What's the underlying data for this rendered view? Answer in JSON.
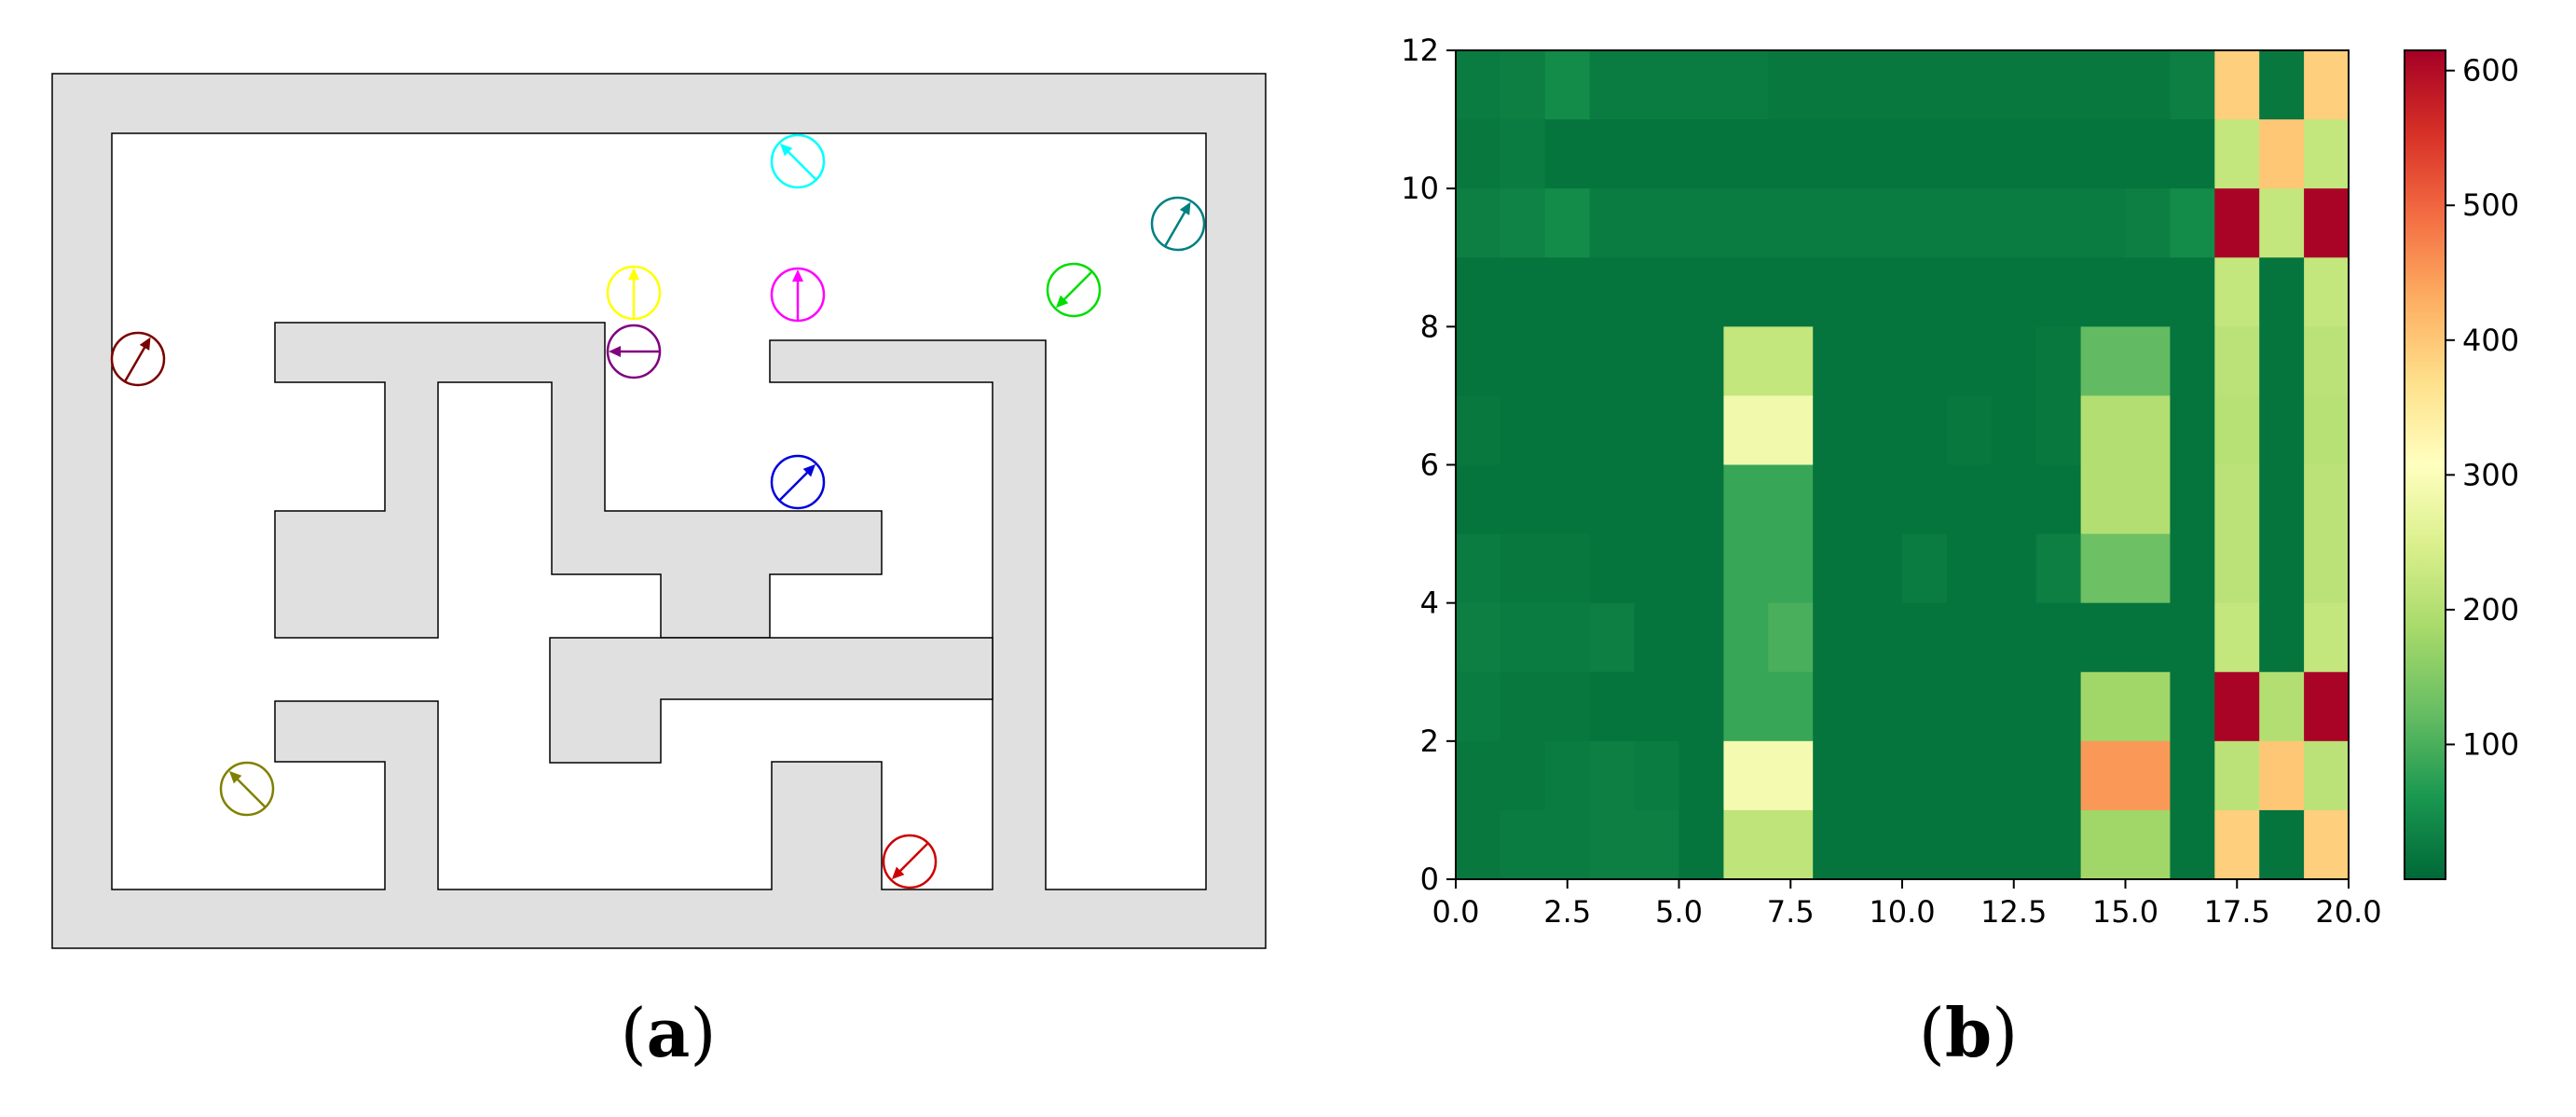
{
  "panel_a": {
    "label": "a",
    "agents": [
      {
        "color": "#7a0000",
        "direction_deg": 60
      },
      {
        "color": "#00ffff",
        "direction_deg": 135
      },
      {
        "color": "#008080",
        "direction_deg": 60
      },
      {
        "color": "#ffff00",
        "direction_deg": 90
      },
      {
        "color": "#ff00ff",
        "direction_deg": 90
      },
      {
        "color": "#00dd00",
        "direction_deg": 225
      },
      {
        "color": "#800080",
        "direction_deg": 180
      },
      {
        "color": "#0000dd",
        "direction_deg": 45
      },
      {
        "color": "#808000",
        "direction_deg": 135
      },
      {
        "color": "#cc0000",
        "direction_deg": 225
      }
    ]
  },
  "panel_b": {
    "label": "b"
  },
  "chart_data": {
    "type": "heatmap",
    "xlim": [
      0,
      20
    ],
    "ylim": [
      0,
      12
    ],
    "x_ticks": [
      "0.0",
      "2.5",
      "5.0",
      "7.5",
      "10.0",
      "12.5",
      "15.0",
      "17.5",
      "20.0"
    ],
    "y_ticks": [
      "0",
      "2",
      "4",
      "6",
      "8",
      "10",
      "12"
    ],
    "colorbar": {
      "cmap": "RdYlGn_r",
      "vmin": 0,
      "vmax": 615,
      "ticks": [
        "100",
        "200",
        "300",
        "400",
        "500",
        "600"
      ]
    },
    "grid": false,
    "rows_top_to_bottom": [
      [
        25,
        30,
        45,
        25,
        25,
        25,
        25,
        20,
        20,
        20,
        20,
        20,
        20,
        20,
        20,
        20,
        30,
        390,
        20,
        390
      ],
      [
        20,
        25,
        15,
        15,
        15,
        15,
        15,
        15,
        15,
        15,
        15,
        15,
        15,
        15,
        15,
        15,
        15,
        220,
        400,
        220
      ],
      [
        30,
        35,
        45,
        25,
        25,
        25,
        25,
        25,
        25,
        25,
        25,
        25,
        25,
        25,
        25,
        30,
        45,
        610,
        220,
        610
      ],
      [
        15,
        15,
        15,
        15,
        15,
        15,
        15,
        15,
        15,
        15,
        15,
        15,
        15,
        15,
        15,
        15,
        15,
        220,
        15,
        220
      ],
      [
        15,
        15,
        15,
        15,
        15,
        15,
        220,
        220,
        15,
        15,
        15,
        15,
        15,
        20,
        120,
        120,
        15,
        210,
        15,
        210
      ],
      [
        20,
        15,
        15,
        15,
        15,
        15,
        285,
        285,
        15,
        15,
        15,
        20,
        15,
        20,
        200,
        200,
        15,
        205,
        15,
        205
      ],
      [
        15,
        15,
        15,
        15,
        15,
        15,
        85,
        85,
        15,
        15,
        15,
        15,
        15,
        15,
        200,
        200,
        15,
        210,
        15,
        210
      ],
      [
        25,
        20,
        20,
        15,
        15,
        15,
        85,
        85,
        15,
        15,
        25,
        15,
        15,
        30,
        130,
        130,
        15,
        210,
        15,
        210
      ],
      [
        30,
        25,
        25,
        30,
        15,
        15,
        85,
        100,
        15,
        15,
        15,
        15,
        15,
        15,
        15,
        15,
        15,
        220,
        15,
        220
      ],
      [
        25,
        20,
        20,
        15,
        15,
        15,
        85,
        85,
        15,
        15,
        15,
        15,
        15,
        15,
        180,
        180,
        15,
        610,
        200,
        610
      ],
      [
        20,
        20,
        25,
        30,
        25,
        15,
        290,
        290,
        15,
        15,
        15,
        15,
        15,
        15,
        450,
        450,
        15,
        210,
        400,
        210
      ],
      [
        20,
        25,
        25,
        30,
        30,
        15,
        215,
        215,
        15,
        15,
        15,
        15,
        15,
        15,
        180,
        180,
        15,
        390,
        15,
        390
      ]
    ]
  }
}
